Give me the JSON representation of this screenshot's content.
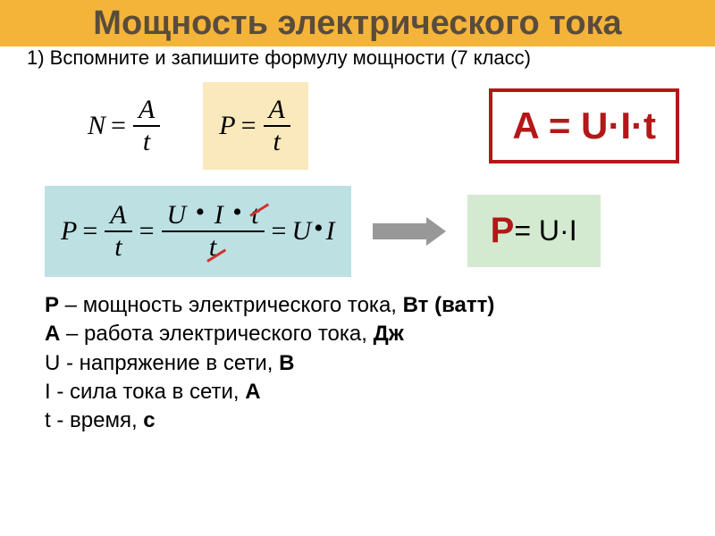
{
  "title": "Мощность электрического тока",
  "title_fontsize": 38,
  "title_color": "#5a4c3b",
  "title_bg": "#f4b43a",
  "prompt": "1) Вспомните и запишите формулу мощности (7 класс)",
  "prompt_color": "#000000",
  "f_N": {
    "lhs": "N",
    "num": "A",
    "den": "t"
  },
  "f_P": {
    "lhs": "P",
    "num": "A",
    "den": "t"
  },
  "f_P_bg": "#f9e9bd",
  "box_A": {
    "text": "A = U·I·t",
    "color": "#b31818",
    "border": "#b31818",
    "fontsize": 42
  },
  "deriv": {
    "bg": "#bde0e3",
    "lhs": "P",
    "frac1_num": "A",
    "frac1_den": "t",
    "mid_num_parts": [
      "U",
      "I",
      "t"
    ],
    "mid_den": "t",
    "rhs_parts": [
      "U",
      "I"
    ],
    "strike_color": "#d1302f"
  },
  "arrow_color": "#989898",
  "box_P": {
    "text_lhs": "P",
    "lhs_fontsize": 40,
    "lhs_color": "#b31818",
    "text_rhs": "= U·I",
    "rhs_fontsize": 32,
    "rhs_color": "#000000",
    "bg": "#d3ead1"
  },
  "defs": [
    {
      "sym": "P",
      "sym_bold": true,
      "text": " – мощность электрического тока, ",
      "unit": "Вт (ватт)"
    },
    {
      "sym": "A",
      "sym_bold": true,
      "text": " – работа электрического тока, ",
      "unit": "Дж"
    },
    {
      "sym": "U",
      "sym_bold": false,
      "text": " - напряжение в сети, ",
      "unit": "В"
    },
    {
      "sym": "I",
      "sym_bold": false,
      "text": " - сила тока в сети, ",
      "unit": "А"
    },
    {
      "sym": "t",
      "sym_bold": false,
      "text": " - время, ",
      "unit": "с"
    }
  ]
}
